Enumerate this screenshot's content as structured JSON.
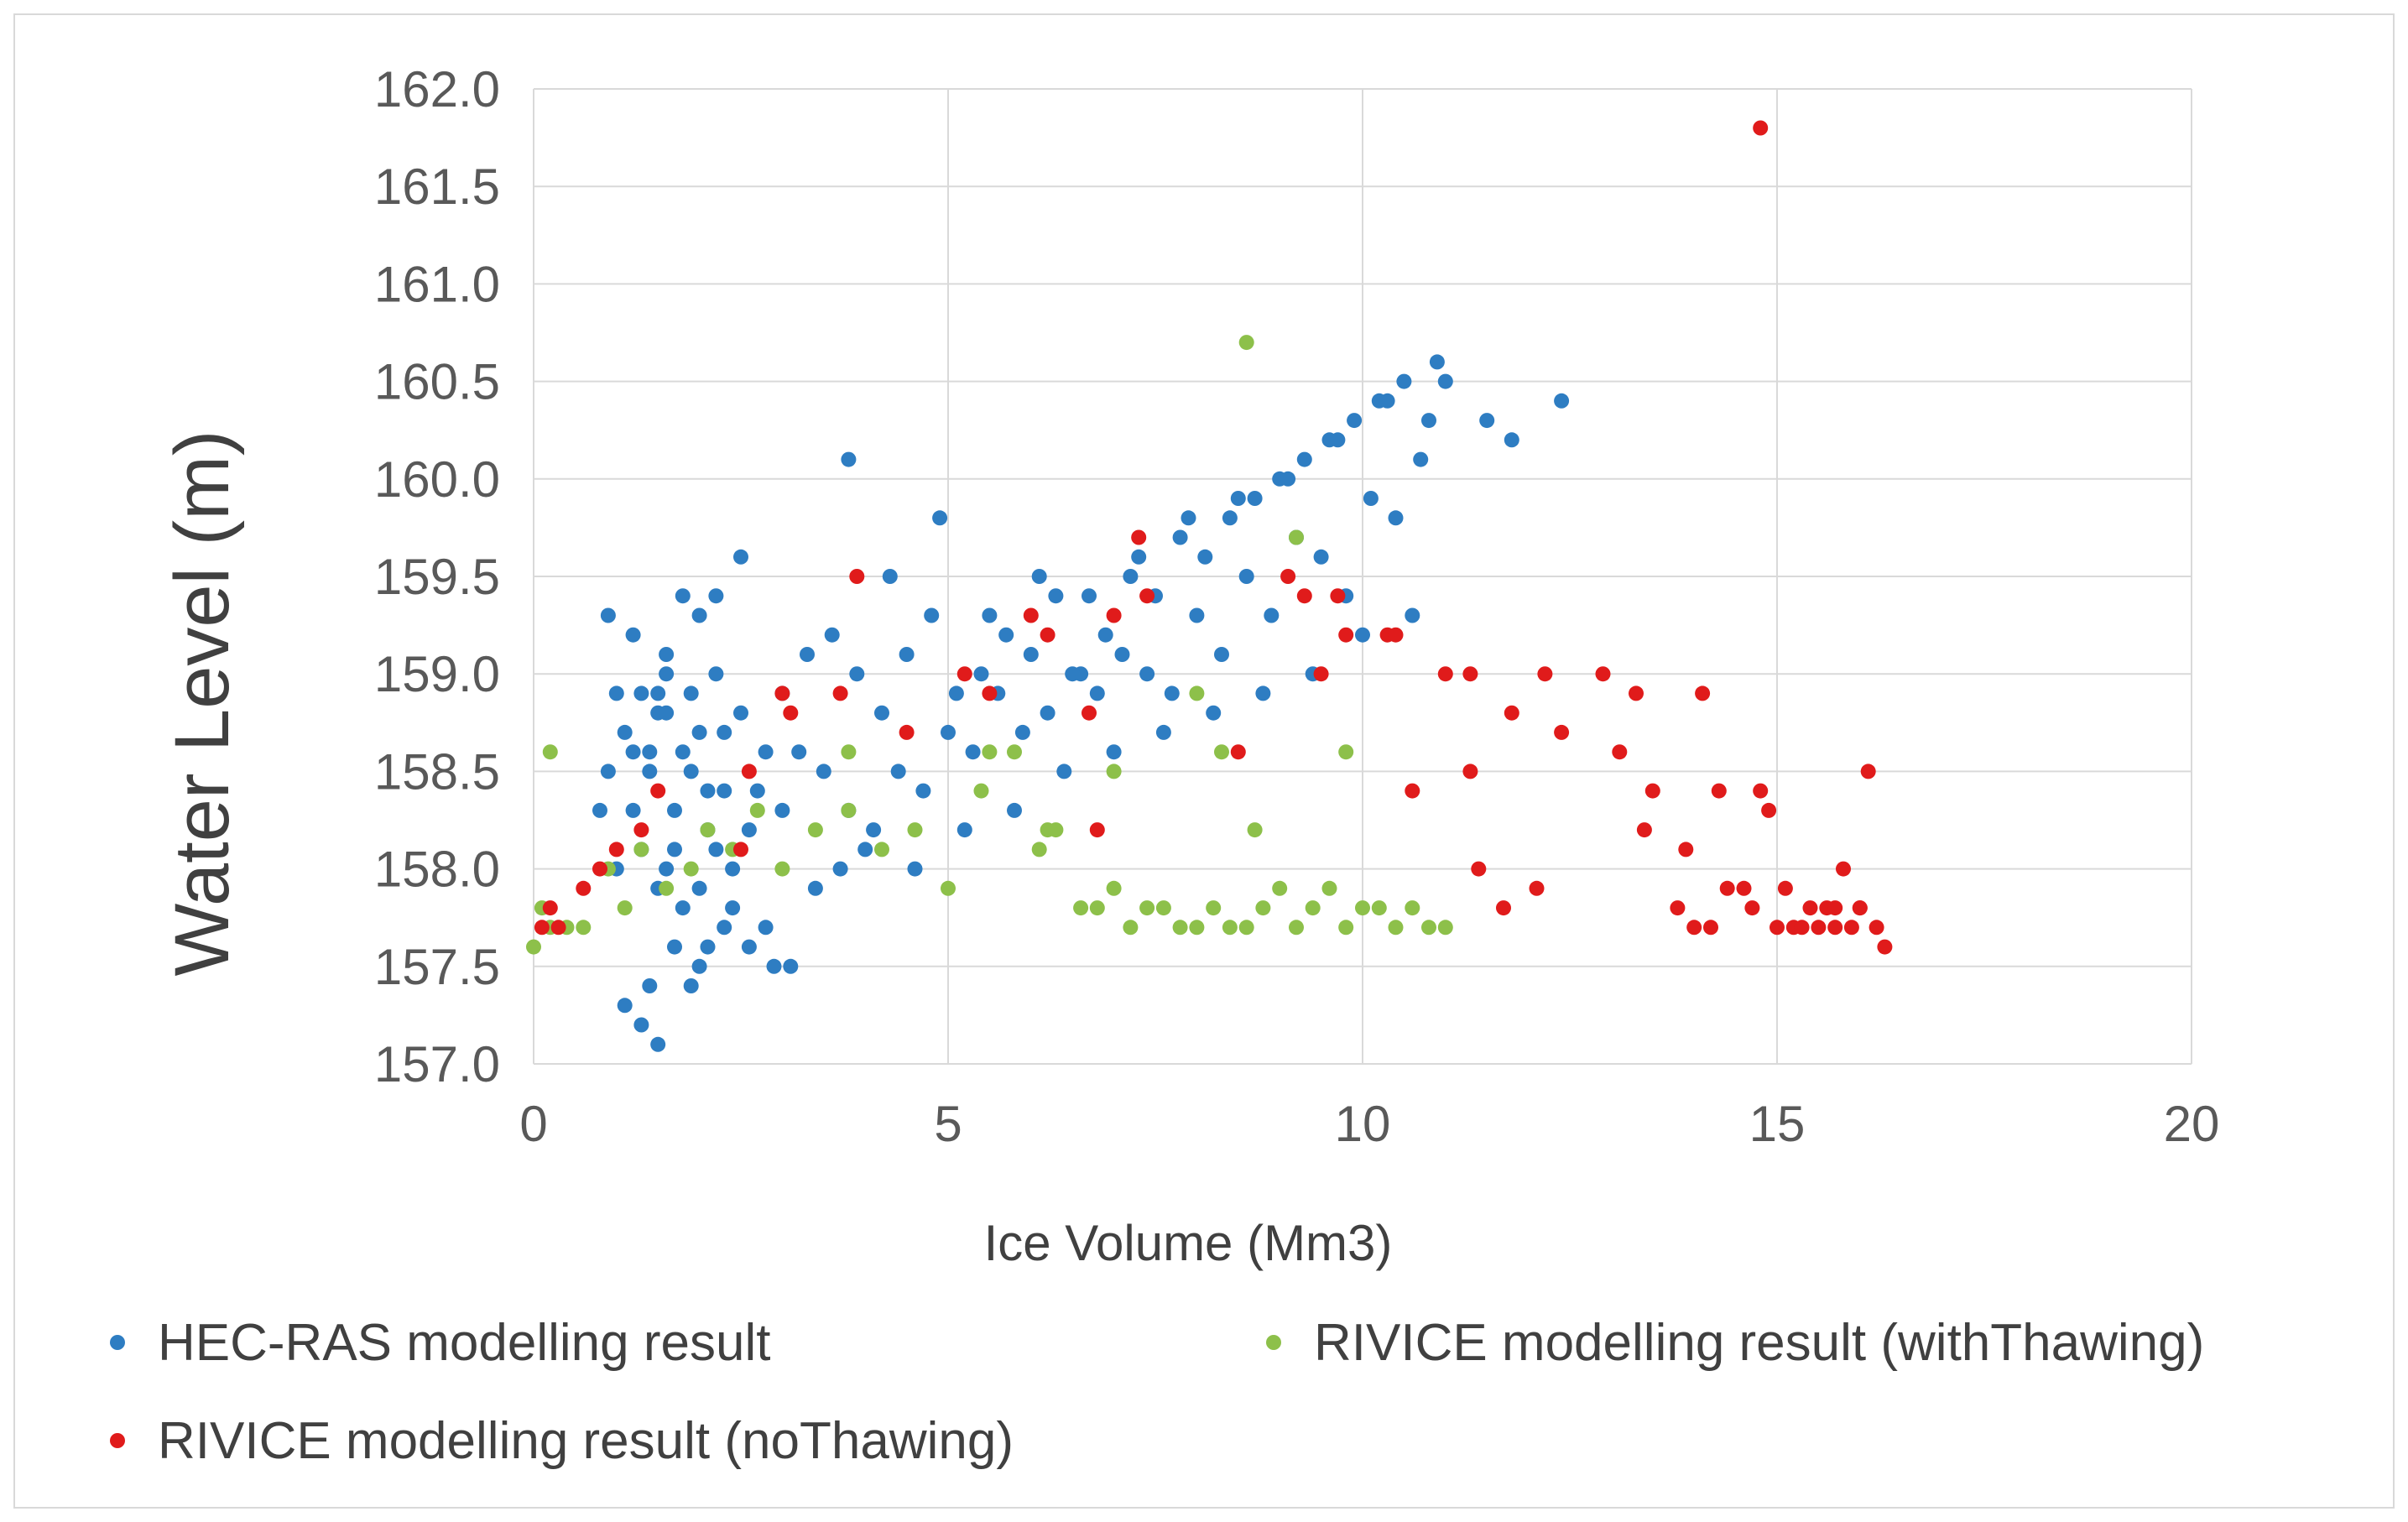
{
  "chart_data": {
    "type": "scatter",
    "title": "",
    "xlabel": "Ice Volume (Mm3)",
    "ylabel": "Water Level (m)",
    "xlim": [
      0,
      20
    ],
    "ylim": [
      157.0,
      162.0
    ],
    "xticks": [
      0,
      5,
      10,
      15,
      20
    ],
    "yticks": [
      157.0,
      157.5,
      158.0,
      158.5,
      159.0,
      159.5,
      160.0,
      160.5,
      161.0,
      161.5,
      162.0
    ],
    "ytick_decimals": 1,
    "grid": true,
    "legend_position": "bottom",
    "series": [
      {
        "name": "HEC-RAS modelling result",
        "color": "#2e7dc2",
        "x": [
          1.5,
          1.8,
          1.2,
          1.0,
          0.9,
          1.3,
          1.6,
          2.0,
          2.3,
          2.1,
          1.7,
          1.4,
          1.1,
          0.8,
          1.9,
          2.5,
          2.8,
          3.0,
          3.3,
          3.6,
          3.9,
          4.2,
          4.5,
          4.8,
          5.1,
          5.4,
          5.7,
          6.0,
          6.3,
          6.6,
          6.9,
          7.2,
          7.5,
          7.8,
          8.1,
          8.4,
          8.7,
          9.0,
          9.3,
          9.6,
          9.9,
          10.2,
          10.5,
          10.8,
          11.0,
          11.5,
          11.8,
          12.4,
          1.0,
          1.2,
          1.3,
          1.5,
          1.6,
          1.8,
          2.0,
          2.2,
          2.4,
          2.6,
          2.7,
          3.0,
          3.2,
          3.5,
          3.8,
          4.1,
          4.4,
          4.7,
          5.0,
          5.3,
          5.6,
          5.9,
          6.2,
          6.5,
          6.8,
          7.1,
          7.4,
          7.7,
          8.0,
          8.3,
          8.6,
          8.9,
          9.2,
          9.5,
          9.8,
          10.1,
          10.4,
          10.7,
          1.4,
          1.7,
          2.0,
          2.3,
          2.6,
          2.9,
          3.4,
          3.7,
          4.0,
          4.6,
          5.2,
          5.8,
          6.4,
          7.0,
          7.6,
          8.2,
          8.8,
          9.4,
          10.0,
          10.6,
          1.1,
          1.3,
          1.5,
          1.9,
          2.1,
          2.4,
          2.8,
          3.1,
          0.9,
          1.2,
          1.6,
          2.2,
          2.5,
          3.8,
          4.3,
          4.9,
          5.5,
          6.1,
          6.7,
          7.3,
          7.9,
          8.5,
          9.1,
          9.7,
          10.3,
          10.9,
          1.8,
          2.0,
          1.6,
          1.4,
          2.2,
          1.9,
          1.7,
          2.3,
          1.5,
          2.1
        ],
        "y": [
          158.8,
          158.6,
          158.3,
          158.0,
          158.5,
          158.9,
          159.0,
          158.7,
          158.4,
          158.2,
          158.1,
          158.5,
          158.7,
          158.3,
          158.9,
          158.8,
          158.6,
          158.9,
          159.1,
          159.2,
          159.0,
          158.8,
          159.1,
          159.3,
          158.9,
          159.0,
          159.2,
          159.1,
          159.4,
          159.0,
          159.2,
          159.5,
          159.4,
          159.7,
          159.6,
          159.8,
          159.9,
          160.0,
          160.1,
          160.2,
          160.3,
          160.4,
          160.5,
          160.3,
          160.5,
          160.3,
          160.2,
          160.4,
          158.9,
          158.6,
          158.1,
          157.9,
          158.0,
          157.8,
          157.9,
          158.1,
          158.0,
          158.2,
          158.4,
          158.3,
          158.6,
          158.5,
          158.3,
          158.2,
          158.5,
          158.4,
          158.7,
          158.6,
          158.9,
          158.7,
          158.8,
          159.0,
          158.9,
          159.1,
          159.0,
          158.9,
          159.3,
          159.1,
          159.5,
          159.3,
          159.7,
          159.6,
          159.4,
          159.9,
          159.8,
          160.1,
          157.4,
          157.6,
          157.5,
          157.7,
          157.6,
          157.5,
          157.9,
          158.0,
          158.1,
          158.0,
          158.2,
          158.3,
          158.5,
          158.6,
          158.7,
          158.8,
          158.9,
          159.0,
          159.2,
          159.3,
          157.3,
          157.2,
          157.1,
          157.4,
          157.6,
          157.8,
          157.7,
          157.5,
          159.3,
          159.2,
          159.1,
          159.4,
          159.6,
          160.1,
          159.5,
          159.8,
          159.3,
          159.5,
          159.4,
          159.6,
          159.8,
          159.9,
          160.0,
          160.2,
          160.4,
          160.6,
          159.4,
          159.3,
          158.8,
          158.6,
          159.0,
          158.5,
          158.3,
          158.7,
          158.9,
          158.4
        ]
      },
      {
        "name": "RIVICE modelling result (withThawing)",
        "color": "#8dc04a",
        "x": [
          0.0,
          0.1,
          0.2,
          0.4,
          0.6,
          0.9,
          1.1,
          1.3,
          1.6,
          1.9,
          2.1,
          2.4,
          2.7,
          3.0,
          3.4,
          3.8,
          4.2,
          4.6,
          5.0,
          5.4,
          5.8,
          6.2,
          6.6,
          7.0,
          7.4,
          7.8,
          8.2,
          8.6,
          9.0,
          9.4,
          9.8,
          10.2,
          10.6,
          11.0,
          8.6,
          9.2,
          9.8,
          6.8,
          7.2,
          7.6,
          8.0,
          8.4,
          8.8,
          9.2,
          9.6,
          10.0,
          10.4,
          10.8,
          0.2,
          3.8,
          5.5,
          7.0,
          8.0,
          8.3,
          8.7,
          6.3,
          6.1
        ],
        "y": [
          157.6,
          157.8,
          158.6,
          157.7,
          157.7,
          158.0,
          157.8,
          158.1,
          157.9,
          158.0,
          158.2,
          158.1,
          158.3,
          158.0,
          158.2,
          158.3,
          158.1,
          158.2,
          157.9,
          158.4,
          158.6,
          158.2,
          157.8,
          157.9,
          157.8,
          157.7,
          157.8,
          157.7,
          157.9,
          157.8,
          157.7,
          157.8,
          157.8,
          157.7,
          160.7,
          159.7,
          158.6,
          157.8,
          157.7,
          157.8,
          157.7,
          157.7,
          157.8,
          157.7,
          157.9,
          157.8,
          157.7,
          157.7,
          157.7,
          158.6,
          158.6,
          158.5,
          158.9,
          158.6,
          158.2,
          158.2,
          158.1
        ]
      },
      {
        "name": "RIVICE modelling result (noThawing)",
        "color": "#e01b1b",
        "x": [
          0.1,
          0.2,
          0.3,
          0.6,
          0.8,
          1.0,
          1.3,
          1.5,
          2.5,
          2.6,
          3.0,
          3.1,
          3.7,
          3.9,
          4.5,
          5.2,
          5.5,
          6.0,
          6.2,
          6.7,
          6.8,
          7.0,
          7.3,
          7.4,
          8.5,
          9.1,
          9.3,
          9.5,
          9.7,
          9.8,
          10.3,
          10.4,
          10.6,
          11.0,
          11.3,
          11.3,
          11.4,
          11.7,
          11.8,
          12.1,
          12.2,
          12.4,
          12.9,
          13.1,
          13.3,
          13.4,
          13.5,
          13.8,
          13.9,
          14.0,
          14.1,
          14.2,
          14.3,
          14.4,
          14.6,
          14.7,
          14.8,
          14.9,
          15.0,
          15.1,
          15.2,
          15.3,
          15.4,
          15.5,
          15.6,
          15.7,
          15.8,
          15.9,
          16.0,
          16.1,
          16.2,
          16.3,
          14.8,
          16.0,
          15.7
        ],
        "y": [
          157.7,
          157.8,
          157.7,
          157.9,
          158.0,
          158.1,
          158.2,
          158.4,
          158.1,
          158.5,
          158.9,
          158.8,
          158.9,
          159.5,
          158.7,
          159.0,
          158.9,
          159.3,
          159.2,
          158.8,
          158.2,
          159.3,
          159.7,
          159.4,
          158.6,
          159.5,
          159.4,
          159.0,
          159.4,
          159.2,
          159.2,
          159.2,
          158.4,
          159.0,
          159.0,
          158.5,
          158.0,
          157.8,
          158.8,
          157.9,
          159.0,
          158.7,
          159.0,
          158.6,
          158.9,
          158.2,
          158.4,
          157.8,
          158.1,
          157.7,
          158.9,
          157.7,
          158.4,
          157.9,
          157.9,
          157.8,
          158.4,
          158.3,
          157.7,
          157.9,
          157.7,
          157.7,
          157.8,
          157.7,
          157.8,
          157.8,
          158.0,
          157.7,
          157.8,
          158.5,
          157.7,
          157.6,
          161.8,
          157.8,
          157.7
        ]
      }
    ]
  }
}
